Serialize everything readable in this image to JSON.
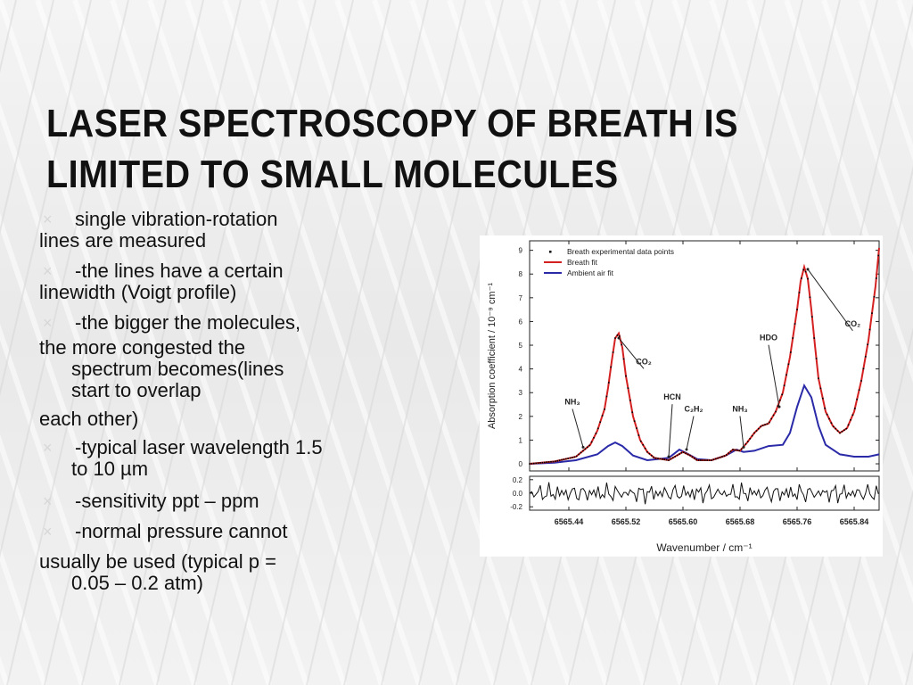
{
  "slide": {
    "title_line1": "LASER SPECTROSCOPY OF BREATH IS",
    "title_line2": "LIMITED TO SMALL MOLECULES",
    "bullets": [
      {
        "first": "single vibration-rotation",
        "rest": [
          "lines are measured"
        ]
      },
      {
        "first": "-the lines have a certain",
        "rest": [
          "linewidth (Voigt profile)"
        ]
      },
      {
        "first": "-the bigger the molecules,",
        "rest": [
          "the more congested the",
          "spectrum becomes(lines",
          "start to overlap",
          "each other)"
        ]
      },
      {
        "first": "-typical laser wavelength 1.5",
        "rest": [
          "to 10 µm"
        ]
      },
      {
        "first": "-sensitivity ppt – ppm",
        "rest": []
      },
      {
        "first": "-normal pressure cannot",
        "rest": [
          "usually be used (typical p =",
          "0.05 – 0.2 atm)"
        ]
      }
    ],
    "bullet_glyph": "×"
  },
  "chart_data": {
    "type": "line",
    "xlabel": "Wavenumber / cm⁻¹",
    "ylabel": "Absorption coefficient / 10⁻⁹ cm⁻¹",
    "xlim": [
      6565.385,
      6565.875
    ],
    "ylim": [
      -0.3,
      9.4
    ],
    "x_ticks": [
      "6565.44",
      "6565.52",
      "6565.60",
      "6565.68",
      "6565.76",
      "6565.84"
    ],
    "y_ticks": [
      "0",
      "1",
      "2",
      "3",
      "4",
      "5",
      "6",
      "7",
      "8",
      "9"
    ],
    "residual_ticks": [
      "0.2",
      "0.0",
      "-0.2"
    ],
    "legend": [
      "Breath experimental data points",
      "Breath fit",
      "Ambient air fit"
    ],
    "colors": {
      "data_points": "#000000",
      "breath_fit": "#d42020",
      "ambient_fit": "#2a2aa8"
    },
    "series": [
      {
        "name": "Breath fit",
        "x": [
          6565.385,
          6565.42,
          6565.45,
          6565.47,
          6565.48,
          6565.49,
          6565.495,
          6565.5,
          6565.505,
          6565.51,
          6565.515,
          6565.52,
          6565.53,
          6565.54,
          6565.55,
          6565.56,
          6565.58,
          6565.6,
          6565.61,
          6565.62,
          6565.64,
          6565.66,
          6565.67,
          6565.68,
          6565.69,
          6565.7,
          6565.71,
          6565.72,
          6565.73,
          6565.74,
          6565.75,
          6565.76,
          6565.765,
          6565.77,
          6565.775,
          6565.78,
          6565.785,
          6565.79,
          6565.8,
          6565.81,
          6565.82,
          6565.83,
          6565.84,
          6565.85,
          6565.86,
          6565.87,
          6565.875
        ],
        "y": [
          0.0,
          0.1,
          0.3,
          0.8,
          1.4,
          2.3,
          3.2,
          4.3,
          5.3,
          5.5,
          4.9,
          3.7,
          2.0,
          1.0,
          0.5,
          0.25,
          0.15,
          0.5,
          0.35,
          0.15,
          0.15,
          0.35,
          0.6,
          0.55,
          0.9,
          1.3,
          1.6,
          1.7,
          2.2,
          3.0,
          4.5,
          6.5,
          7.7,
          8.3,
          7.8,
          6.5,
          5.0,
          3.6,
          2.2,
          1.6,
          1.3,
          1.5,
          2.2,
          3.5,
          5.2,
          7.5,
          9.1
        ]
      },
      {
        "name": "Ambient air fit",
        "x": [
          6565.385,
          6565.42,
          6565.45,
          6565.48,
          6565.495,
          6565.505,
          6565.515,
          6565.53,
          6565.55,
          6565.58,
          6565.595,
          6565.605,
          6565.62,
          6565.64,
          6565.66,
          6565.675,
          6565.685,
          6565.7,
          6565.72,
          6565.74,
          6565.75,
          6565.76,
          6565.77,
          6565.78,
          6565.79,
          6565.8,
          6565.82,
          6565.84,
          6565.86,
          6565.875
        ],
        "y": [
          0.0,
          0.05,
          0.15,
          0.4,
          0.75,
          0.9,
          0.75,
          0.35,
          0.15,
          0.25,
          0.6,
          0.45,
          0.2,
          0.15,
          0.35,
          0.6,
          0.5,
          0.55,
          0.75,
          0.8,
          1.3,
          2.4,
          3.3,
          2.8,
          1.6,
          0.8,
          0.4,
          0.3,
          0.3,
          0.4
        ]
      }
    ],
    "annotations": [
      {
        "label": "NH₃",
        "x": 6565.445,
        "y": 2.5
      },
      {
        "label": "CO₂",
        "x": 6565.545,
        "y": 4.2
      },
      {
        "label": "HCN",
        "x": 6565.585,
        "y": 2.7
      },
      {
        "label": "C₂H₂",
        "x": 6565.615,
        "y": 2.2
      },
      {
        "label": "NH₃",
        "x": 6565.68,
        "y": 2.2
      },
      {
        "label": "HDO",
        "x": 6565.72,
        "y": 5.2
      },
      {
        "label": "CO₂",
        "x": 6565.838,
        "y": 5.8
      }
    ]
  }
}
